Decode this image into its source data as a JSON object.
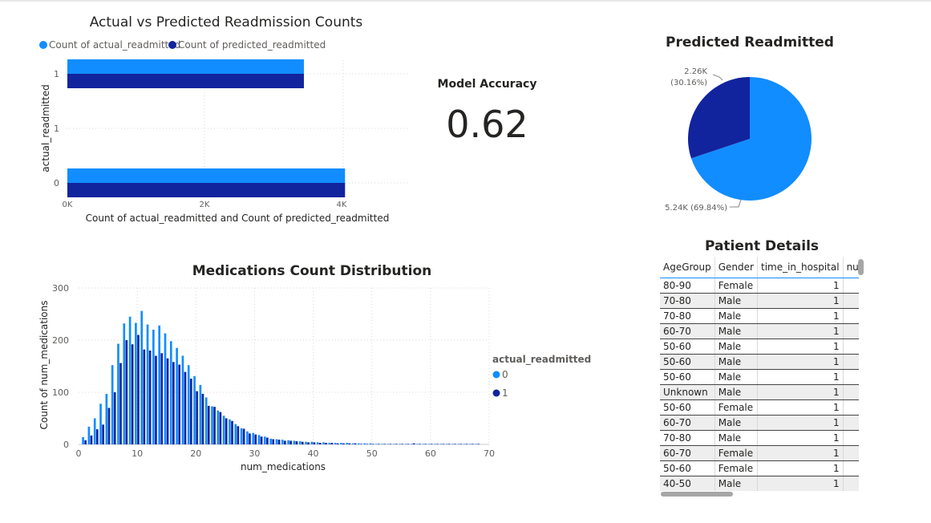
{
  "bar_chart": {
    "title": "Actual vs Predicted Readmission Counts",
    "legend": [
      {
        "label": "Count of actual_readmitted",
        "color": "#118dff"
      },
      {
        "label": "Count of predicted_readmitted",
        "color": "#12239e"
      }
    ],
    "ylabel": "actual_readmitted",
    "xlabel": "Count of actual_readmitted and Count of predicted_readmitted",
    "y_ticks": [
      "1",
      "1",
      "0"
    ],
    "x_ticks": [
      "0K",
      "2K",
      "4K"
    ]
  },
  "kpi": {
    "label": "Model Accuracy",
    "value": "0.62"
  },
  "pie": {
    "title": "Predicted Readmitted",
    "label_small_1": "2.26K",
    "label_small_2": "(30.16%)",
    "label_large": "5.24K (69.84%)"
  },
  "histogram": {
    "title": "Medications Count Distribution",
    "xlabel": "num_medications",
    "ylabel": "Count of num_medications",
    "x_ticks": [
      "0",
      "10",
      "20",
      "30",
      "40",
      "50",
      "60",
      "70"
    ],
    "y_ticks": [
      "0",
      "100",
      "200",
      "300"
    ],
    "legend_title": "actual_readmitted",
    "legend": [
      {
        "label": "0",
        "color": "#118dff"
      },
      {
        "label": "1",
        "color": "#12239e"
      }
    ]
  },
  "table": {
    "title": "Patient Details",
    "columns": [
      "AgeGroup",
      "Gender",
      "time_in_hospital",
      "num_"
    ],
    "rows": [
      [
        "80-90",
        "Female",
        "1"
      ],
      [
        "70-80",
        "Male",
        "1"
      ],
      [
        "70-80",
        "Male",
        "1"
      ],
      [
        "60-70",
        "Male",
        "1"
      ],
      [
        "50-60",
        "Male",
        "1"
      ],
      [
        "50-60",
        "Male",
        "1"
      ],
      [
        "50-60",
        "Male",
        "1"
      ],
      [
        "Unknown",
        "Male",
        "1"
      ],
      [
        "50-60",
        "Female",
        "1"
      ],
      [
        "60-70",
        "Male",
        "1"
      ],
      [
        "70-80",
        "Male",
        "1"
      ],
      [
        "60-70",
        "Female",
        "1"
      ],
      [
        "50-60",
        "Female",
        "1"
      ],
      [
        "40-50",
        "Male",
        "1"
      ]
    ]
  },
  "chart_data": [
    {
      "type": "bar",
      "orientation": "horizontal",
      "title": "Actual vs Predicted Readmission Counts",
      "xlabel": "Count of actual_readmitted and Count of predicted_readmitted",
      "ylabel": "actual_readmitted",
      "categories": [
        "1",
        "0"
      ],
      "series": [
        {
          "name": "Count of actual_readmitted",
          "values": [
            3450,
            4050
          ]
        },
        {
          "name": "Count of predicted_readmitted",
          "values": [
            3450,
            4050
          ]
        }
      ],
      "xlim": [
        0,
        5000
      ],
      "grid": true,
      "legend": "top-left"
    },
    {
      "type": "pie",
      "title": "Predicted Readmitted",
      "slices": [
        {
          "label": "5.24K (69.84%)",
          "value": 5240,
          "percent": 69.84,
          "color": "#118dff"
        },
        {
          "label": "2.26K (30.16%)",
          "value": 2260,
          "percent": 30.16,
          "color": "#12239e"
        }
      ]
    },
    {
      "type": "bar",
      "title": "Medications Count Distribution",
      "xlabel": "num_medications",
      "ylabel": "Count of num_medications",
      "ylim": [
        0,
        300
      ],
      "xlim": [
        0,
        70
      ],
      "grid": true,
      "legend": "right",
      "x": [
        1,
        2,
        3,
        4,
        5,
        6,
        7,
        8,
        9,
        10,
        11,
        12,
        13,
        14,
        15,
        16,
        17,
        18,
        19,
        20,
        21,
        22,
        23,
        24,
        25,
        26,
        27,
        28,
        29,
        30,
        31,
        32,
        33,
        34,
        35,
        36,
        37,
        38,
        39,
        40,
        41,
        42,
        43,
        44,
        45,
        46,
        47,
        48,
        49,
        50,
        51,
        52,
        53,
        54,
        55,
        56,
        57,
        58,
        59,
        60,
        61,
        62,
        63,
        64,
        65,
        66,
        67,
        68
      ],
      "series": [
        {
          "name": "0",
          "values": [
            14,
            34,
            50,
            78,
            97,
            152,
            193,
            232,
            245,
            233,
            256,
            230,
            220,
            228,
            213,
            198,
            185,
            170,
            152,
            131,
            114,
            90,
            73,
            65,
            55,
            48,
            39,
            31,
            25,
            22,
            18,
            15,
            11,
            10,
            9,
            8,
            7,
            6,
            5,
            5,
            4,
            4,
            3,
            3,
            3,
            3,
            2,
            2,
            2,
            2,
            1,
            1,
            1,
            1,
            1,
            1,
            1,
            1,
            1,
            1,
            1,
            1,
            1,
            1,
            1,
            1,
            1,
            1
          ]
        },
        {
          "name": "1",
          "values": [
            8,
            17,
            29,
            38,
            70,
            100,
            156,
            200,
            192,
            210,
            182,
            180,
            170,
            175,
            165,
            158,
            153,
            139,
            126,
            102,
            97,
            74,
            72,
            62,
            50,
            45,
            35,
            30,
            21,
            19,
            15,
            13,
            10,
            9,
            7,
            7,
            6,
            5,
            4,
            4,
            3,
            3,
            3,
            2,
            2,
            2,
            2,
            1,
            1,
            1,
            1,
            1,
            1,
            1,
            1,
            1,
            2,
            1,
            1,
            1,
            1,
            1,
            1,
            1,
            1,
            1,
            1,
            1
          ]
        }
      ]
    }
  ]
}
